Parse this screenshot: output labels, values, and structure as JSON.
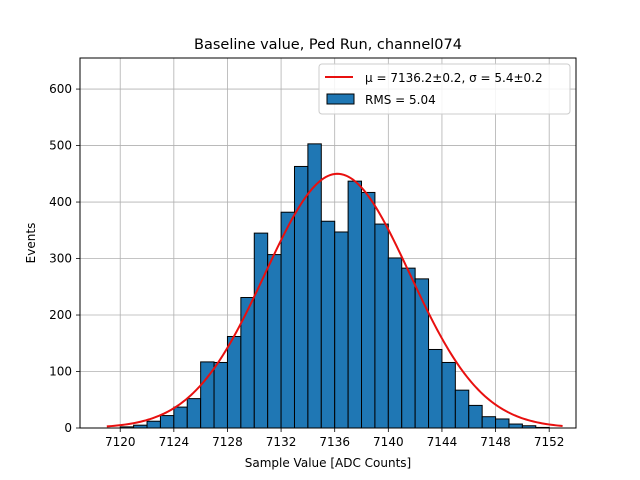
{
  "chart_data": {
    "type": "bar",
    "title": "Baseline value, Ped Run, channel074",
    "xlabel": "Sample Value [ADC Counts]",
    "ylabel": "Events",
    "xlim": [
      7117,
      7154
    ],
    "ylim": [
      0,
      655
    ],
    "xticks": [
      7120,
      7124,
      7128,
      7132,
      7136,
      7140,
      7144,
      7148,
      7152
    ],
    "yticks": [
      0,
      100,
      200,
      300,
      400,
      500,
      600
    ],
    "grid": true,
    "legend_position": "top-right",
    "histogram": {
      "name": "RMS = 5.04",
      "color": "#1f77b4",
      "edgecolor": "#000000",
      "bin_edges": [
        7120,
        7121,
        7122,
        7123,
        7124,
        7125,
        7126,
        7127,
        7128,
        7129,
        7130,
        7131,
        7132,
        7133,
        7134,
        7135,
        7136,
        7137,
        7138,
        7139,
        7140,
        7141,
        7142,
        7143,
        7144,
        7145,
        7146,
        7147,
        7148,
        7149,
        7150,
        7151,
        7152
      ],
      "counts": [
        2,
        5,
        12,
        22,
        37,
        52,
        117,
        116,
        162,
        231,
        345,
        307,
        382,
        463,
        503,
        366,
        347,
        437,
        417,
        361,
        301,
        283,
        264,
        139,
        116,
        67,
        40,
        20,
        16,
        7,
        4,
        1
      ]
    },
    "fit": {
      "name_mu_part": "μ = 7136.2±0.2, ",
      "name_sigma_part": "σ = 5.4±0.2",
      "color": "#e8100f",
      "type": "gaussian",
      "mu": 7136.2,
      "sigma": 5.4,
      "amplitude": 450,
      "x_range": [
        7119,
        7153
      ]
    }
  }
}
